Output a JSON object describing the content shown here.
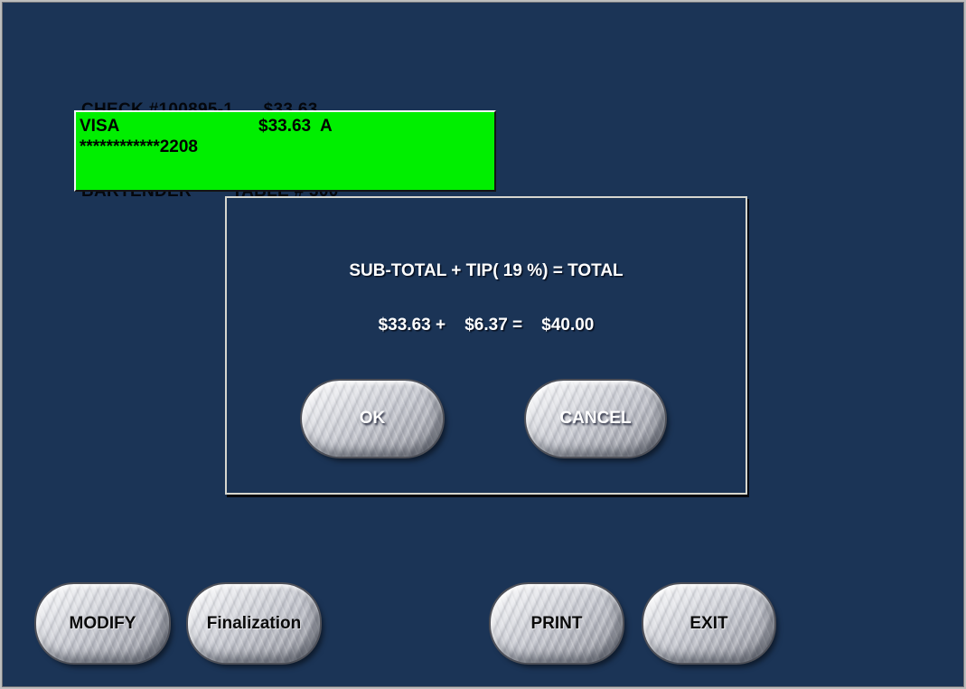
{
  "colors": {
    "background": "#1B3456",
    "window_border": "#BDBDBD",
    "payment_highlight": "#00EF00",
    "dialog_border": "#D6D6CE",
    "dialog_text": "#FFFFFF",
    "header_text": "#04070D"
  },
  "header": {
    "check_line": "CHECK #100895-1      $33.63",
    "server_line": "BARTENDER        TABLE # 300"
  },
  "payment_entry": {
    "card_type": "VISA",
    "amount_status": "$33.63  A",
    "card_number": "************2208"
  },
  "tip_dialog": {
    "formula_line": "SUB-TOTAL + TIP( 19 %) = TOTAL",
    "amounts_line": "$33.63 +    $6.37 =    $40.00",
    "subtotal": "$33.63",
    "tip_percent": "19",
    "tip_amount": "$6.37",
    "total": "$40.00",
    "buttons": {
      "ok": "OK",
      "cancel": "CANCEL"
    }
  },
  "action_buttons": {
    "modify": "MODIFY",
    "finalization": "Finalization",
    "print": "PRINT",
    "exit": "EXIT"
  }
}
